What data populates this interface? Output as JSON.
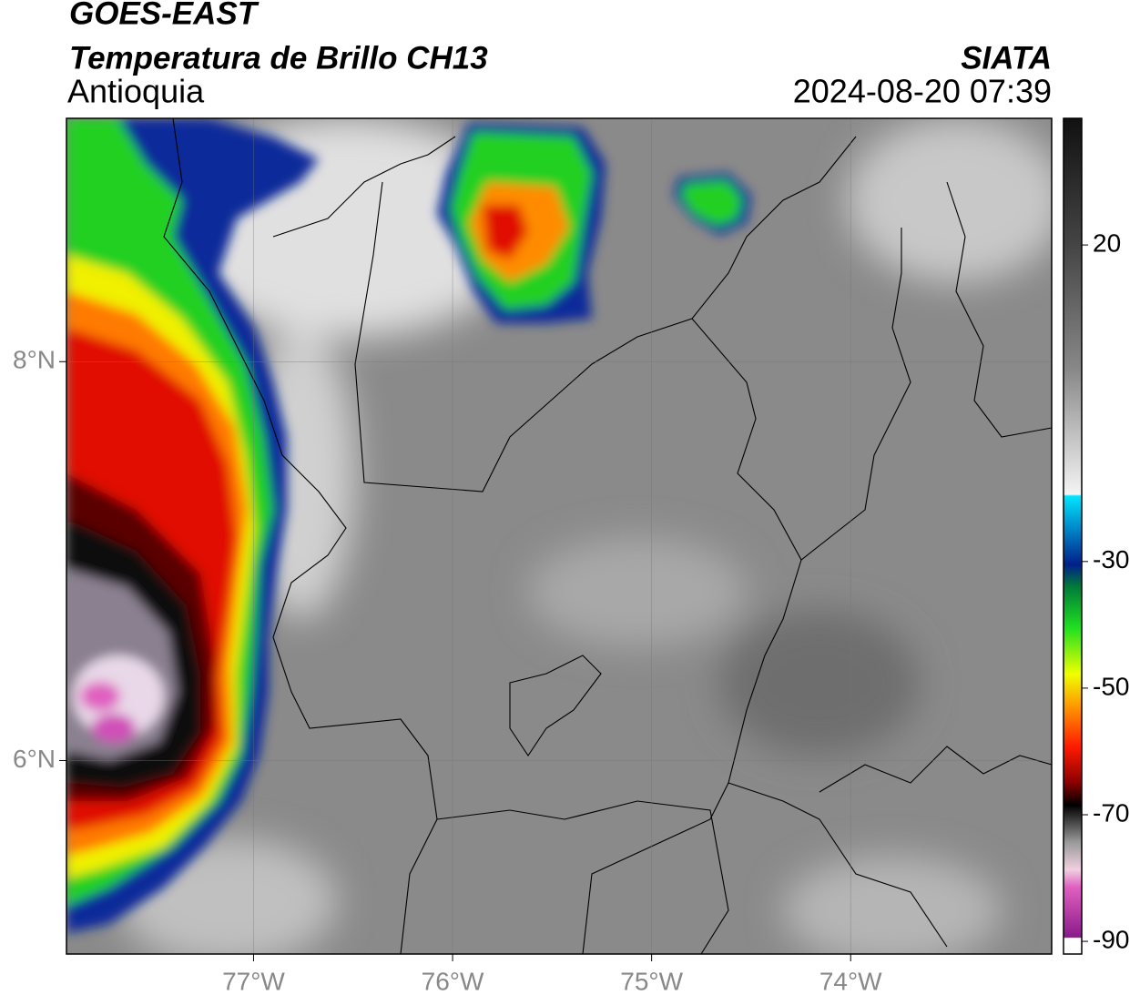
{
  "header": {
    "title": "GOES-EAST",
    "subtitle": "Temperatura de Brillo CH13",
    "region": "Antioquia",
    "source": "SIATA",
    "datetime": "2024-08-20 07:39"
  },
  "map": {
    "xlim": [
      -77.94,
      -72.99
    ],
    "ylim": [
      5.03,
      9.22
    ],
    "xticks": [
      {
        "value": -77,
        "label": "77°W"
      },
      {
        "value": -76,
        "label": "76°W"
      },
      {
        "value": -75,
        "label": "75°W"
      },
      {
        "value": -74,
        "label": "74°W"
      }
    ],
    "yticks": [
      {
        "value": 8,
        "label": "8°N"
      },
      {
        "value": 6,
        "label": "6°N"
      }
    ],
    "grid": true
  },
  "colorbar": {
    "range": [
      -92,
      40
    ],
    "ticks": [
      20,
      -30,
      -50,
      -70,
      -90
    ]
  }
}
